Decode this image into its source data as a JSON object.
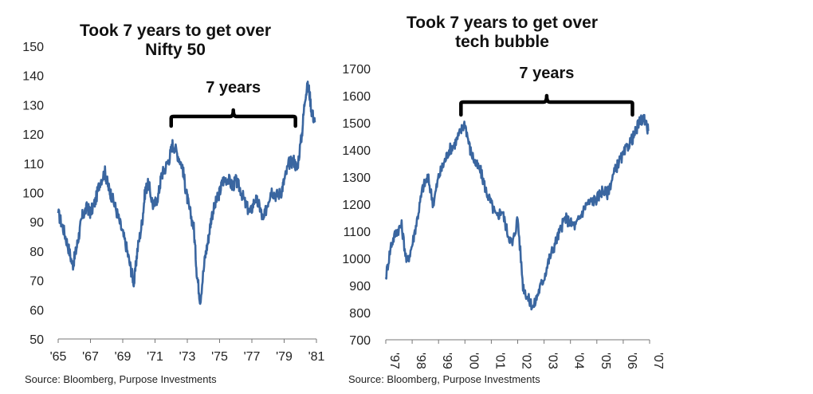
{
  "chart_data": [
    {
      "type": "line",
      "title": "Took 7 years to get over Nifty 50",
      "title_lines": [
        "Took 7 years to get over",
        "Nifty 50"
      ],
      "annotation": "7 years",
      "bracket_x": [
        1972.0,
        1979.7
      ],
      "source": "Source: Bloomberg, Purpose Investments",
      "ylim": [
        50,
        150
      ],
      "yticks": [
        150,
        140,
        130,
        120,
        110,
        100,
        90,
        80,
        70,
        60,
        50
      ],
      "xlim": [
        1965,
        1981
      ],
      "xticks": [
        {
          "label": "'65",
          "value": 1965
        },
        {
          "label": "'67",
          "value": 1967
        },
        {
          "label": "'69",
          "value": 1969
        },
        {
          "label": "'71",
          "value": 1971
        },
        {
          "label": "'73",
          "value": 1973
        },
        {
          "label": "'75",
          "value": 1975
        },
        {
          "label": "'77",
          "value": 1977
        },
        {
          "label": "'79",
          "value": 1979
        },
        {
          "label": "'81",
          "value": 1981
        }
      ],
      "line_color": "#3a66a0",
      "series": [
        {
          "x": [
            1965.0,
            1965.3,
            1965.6,
            1965.9,
            1966.1,
            1966.3,
            1966.5,
            1966.8,
            1967.0,
            1967.3,
            1967.6,
            1967.9,
            1968.1,
            1968.3,
            1968.6,
            1968.9,
            1969.2,
            1969.5,
            1969.7,
            1969.9,
            1970.2,
            1970.4,
            1970.6,
            1970.9,
            1971.2,
            1971.4,
            1971.6,
            1971.9,
            1972.1,
            1972.4,
            1972.7,
            1972.9,
            1973.1,
            1973.4,
            1973.6,
            1973.8,
            1974.1,
            1974.3,
            1974.5,
            1974.8,
            1975.0,
            1975.2,
            1975.5,
            1975.8,
            1976.0,
            1976.3,
            1976.6,
            1976.9,
            1977.2,
            1977.5,
            1977.7,
            1978.0,
            1978.2,
            1978.5,
            1978.8,
            1979.0,
            1979.3,
            1979.6,
            1979.8,
            1980.1,
            1980.3,
            1980.5,
            1980.7,
            1980.9
          ],
          "y": [
            93,
            88,
            82,
            75,
            80,
            86,
            92,
            95,
            93,
            97,
            104,
            107,
            102,
            99,
            94,
            88,
            82,
            74,
            69,
            80,
            90,
            101,
            103,
            95,
            99,
            106,
            108,
            112,
            117,
            113,
            109,
            101,
            95,
            88,
            72,
            63,
            78,
            84,
            92,
            97,
            100,
            104,
            105,
            102,
            104,
            101,
            96,
            93,
            98,
            95,
            90,
            97,
            101,
            99,
            100,
            104,
            110,
            111,
            108,
            120,
            133,
            137,
            128,
            124
          ]
        }
      ]
    },
    {
      "type": "line",
      "title": "Took 7 years to get over tech bubble",
      "title_lines": [
        "Took 7 years to get over",
        "tech bubble"
      ],
      "annotation": "7 years",
      "bracket_x": [
        1999.85,
        2006.35
      ],
      "source": "Source: Bloomberg, Purpose Investments",
      "ylim": [
        700,
        1700
      ],
      "yticks": [
        1700,
        1600,
        1500,
        1400,
        1300,
        1200,
        1100,
        1000,
        900,
        800,
        700
      ],
      "xlim": [
        1997,
        2007
      ],
      "xticks": [
        {
          "label": "'97",
          "value": 1997
        },
        {
          "label": "'98",
          "value": 1998
        },
        {
          "label": "'99",
          "value": 1999
        },
        {
          "label": "'00",
          "value": 2000
        },
        {
          "label": "'01",
          "value": 2001
        },
        {
          "label": "'02",
          "value": 2002
        },
        {
          "label": "'03",
          "value": 2003
        },
        {
          "label": "'04",
          "value": 2004
        },
        {
          "label": "'05",
          "value": 2005
        },
        {
          "label": "'06",
          "value": 2006
        },
        {
          "label": "'07",
          "value": 2007
        }
      ],
      "line_color": "#3a66a0",
      "series": [
        {
          "x": [
            1997.0,
            1997.2,
            1997.4,
            1997.6,
            1997.8,
            1998.0,
            1998.2,
            1998.4,
            1998.6,
            1998.8,
            1999.0,
            1999.2,
            1999.4,
            1999.6,
            1999.8,
            2000.0,
            2000.2,
            2000.4,
            2000.6,
            2000.8,
            2001.0,
            2001.2,
            2001.4,
            2001.6,
            2001.8,
            2002.0,
            2002.2,
            2002.4,
            2002.6,
            2002.8,
            2003.0,
            2003.2,
            2003.4,
            2003.6,
            2003.8,
            2004.0,
            2004.2,
            2004.4,
            2004.6,
            2004.8,
            2005.0,
            2005.2,
            2005.4,
            2005.6,
            2005.8,
            2006.0,
            2006.2,
            2006.4,
            2006.6,
            2006.8,
            2006.95
          ],
          "y": [
            930,
            1050,
            1100,
            1120,
            980,
            1050,
            1150,
            1260,
            1300,
            1200,
            1300,
            1350,
            1400,
            1420,
            1460,
            1500,
            1400,
            1350,
            1320,
            1250,
            1200,
            1150,
            1180,
            1100,
            1050,
            1150,
            900,
            850,
            820,
            880,
            930,
            1000,
            1050,
            1100,
            1150,
            1130,
            1120,
            1160,
            1200,
            1210,
            1220,
            1250,
            1240,
            1300,
            1350,
            1380,
            1420,
            1450,
            1500,
            1520,
            1470
          ]
        }
      ]
    }
  ]
}
